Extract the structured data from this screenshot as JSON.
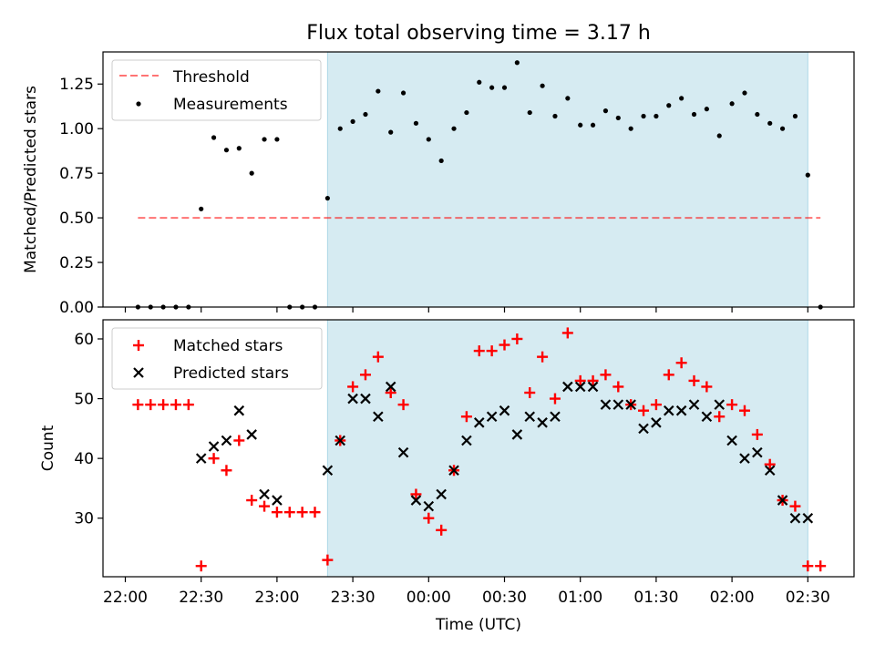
{
  "figure": {
    "title": "Flux total observing time = 3.17 h"
  },
  "colors": {
    "shade": "#add8e6",
    "threshold": "#ff0000",
    "measurement": "#000000",
    "matched": "#ff0000",
    "predicted": "#000000"
  },
  "chart_data": [
    {
      "type": "scatter",
      "ylabel": "Matched/Predicted stars",
      "xlabel": "",
      "ylim": [
        0,
        1.43
      ],
      "yticks": [
        "0.00",
        "0.25",
        "0.50",
        "0.75",
        "1.00",
        "1.25"
      ],
      "ytick_values": [
        0,
        0.25,
        0.5,
        0.75,
        1.0,
        1.25
      ],
      "legend_position": "top-left",
      "shaded_region": {
        "x_start": "23:20",
        "x_end": "02:30"
      },
      "threshold": {
        "name": "Threshold",
        "y": 0.5,
        "x_start": "22:05",
        "x_end": "02:35"
      },
      "series": [
        {
          "name": "Measurements",
          "x": [
            "22:05",
            "22:10",
            "22:15",
            "22:20",
            "22:25",
            "22:30",
            "22:35",
            "22:40",
            "22:45",
            "22:50",
            "22:55",
            "23:00",
            "23:05",
            "23:10",
            "23:15",
            "23:20",
            "23:25",
            "23:30",
            "23:35",
            "23:40",
            "23:45",
            "23:50",
            "23:55",
            "00:00",
            "00:05",
            "00:10",
            "00:15",
            "00:20",
            "00:25",
            "00:30",
            "00:35",
            "00:40",
            "00:45",
            "00:50",
            "00:55",
            "01:00",
            "01:05",
            "01:10",
            "01:15",
            "01:20",
            "01:25",
            "01:30",
            "01:35",
            "01:40",
            "01:45",
            "01:50",
            "01:55",
            "02:00",
            "02:05",
            "02:10",
            "02:15",
            "02:20",
            "02:25",
            "02:30",
            "02:35"
          ],
          "y": [
            0,
            0,
            0,
            0,
            0,
            0.55,
            0.95,
            0.88,
            0.89,
            0.75,
            0.94,
            0.94,
            0,
            0,
            0,
            0.61,
            1.0,
            1.04,
            1.08,
            1.21,
            0.98,
            1.2,
            1.03,
            0.94,
            0.82,
            1.0,
            1.09,
            1.26,
            1.23,
            1.23,
            1.37,
            1.09,
            1.24,
            1.07,
            1.17,
            1.02,
            1.02,
            1.1,
            1.06,
            1.0,
            1.07,
            1.07,
            1.13,
            1.17,
            1.08,
            1.11,
            0.96,
            1.14,
            1.2,
            1.08,
            1.03,
            1.0,
            1.07,
            0.74,
            0
          ]
        }
      ]
    },
    {
      "type": "scatter",
      "xlabel": "Time (UTC)",
      "ylabel": "Count",
      "ylim": [
        20.2,
        63.2
      ],
      "yticks": [
        "30",
        "40",
        "50",
        "60"
      ],
      "ytick_values": [
        30,
        40,
        50,
        60
      ],
      "xticks": [
        "22:00",
        "22:30",
        "23:00",
        "23:30",
        "00:00",
        "00:30",
        "01:00",
        "01:30",
        "02:00",
        "02:30"
      ],
      "legend_position": "top-left",
      "shaded_region": {
        "x_start": "23:20",
        "x_end": "02:30"
      },
      "series": [
        {
          "name": "Matched stars",
          "marker": "plus",
          "x": [
            "22:05",
            "22:10",
            "22:15",
            "22:20",
            "22:25",
            "22:30",
            "22:35",
            "22:40",
            "22:45",
            "22:50",
            "22:55",
            "23:00",
            "23:05",
            "23:10",
            "23:15",
            "23:20",
            "23:25",
            "23:30",
            "23:35",
            "23:40",
            "23:45",
            "23:50",
            "23:55",
            "00:00",
            "00:05",
            "00:10",
            "00:15",
            "00:20",
            "00:25",
            "00:30",
            "00:35",
            "00:40",
            "00:45",
            "00:50",
            "00:55",
            "01:00",
            "01:05",
            "01:10",
            "01:15",
            "01:20",
            "01:25",
            "01:30",
            "01:35",
            "01:40",
            "01:45",
            "01:50",
            "01:55",
            "02:00",
            "02:05",
            "02:10",
            "02:15",
            "02:20",
            "02:25",
            "02:30",
            "02:35"
          ],
          "y": [
            49,
            49,
            49,
            49,
            49,
            22,
            40,
            38,
            43,
            33,
            32,
            31,
            31,
            31,
            31,
            23,
            43,
            52,
            54,
            57,
            51,
            49,
            34,
            30,
            28,
            38,
            47,
            58,
            58,
            59,
            60,
            51,
            57,
            50,
            61,
            53,
            53,
            54,
            52,
            49,
            48,
            49,
            54,
            56,
            53,
            52,
            47,
            49,
            48,
            44,
            39,
            33,
            32,
            22,
            22
          ]
        },
        {
          "name": "Predicted stars",
          "marker": "x",
          "x": [
            "22:30",
            "22:35",
            "22:40",
            "22:45",
            "22:50",
            "22:55",
            "23:00",
            "23:20",
            "23:25",
            "23:30",
            "23:35",
            "23:40",
            "23:45",
            "23:50",
            "23:55",
            "00:00",
            "00:05",
            "00:10",
            "00:15",
            "00:20",
            "00:25",
            "00:30",
            "00:35",
            "00:40",
            "00:45",
            "00:50",
            "00:55",
            "01:00",
            "01:05",
            "01:10",
            "01:15",
            "01:20",
            "01:25",
            "01:30",
            "01:35",
            "01:40",
            "01:45",
            "01:50",
            "01:55",
            "02:00",
            "02:05",
            "02:10",
            "02:15",
            "02:20",
            "02:25",
            "02:30"
          ],
          "y": [
            40,
            42,
            43,
            48,
            44,
            34,
            33,
            38,
            43,
            50,
            50,
            47,
            52,
            41,
            33,
            32,
            34,
            38,
            43,
            46,
            47,
            48,
            44,
            47,
            46,
            47,
            52,
            52,
            52,
            49,
            49,
            49,
            45,
            46,
            48,
            48,
            49,
            47,
            49,
            43,
            40,
            41,
            38,
            33,
            30,
            30
          ]
        }
      ]
    }
  ]
}
